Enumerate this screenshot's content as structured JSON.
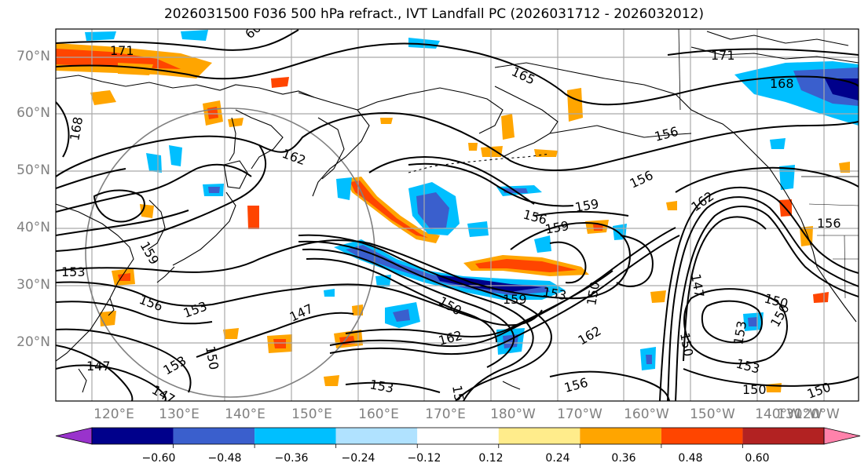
{
  "title": "2026031500 F036 500 hPa refract., IVT Landfall PC (2026031712 - 2026032012)",
  "lat_labels": [
    "70°N",
    "60°N",
    "50°N",
    "40°N",
    "30°N",
    "20°N"
  ],
  "lon_labels": [
    "120°E",
    "130°E",
    "140°E",
    "150°E",
    "160°E",
    "170°E",
    "180°W",
    "170°W",
    "160°W",
    "150°W",
    "140°W",
    "130°W",
    "120°W"
  ],
  "contour_labels": [
    "171",
    "165",
    "171",
    "168",
    "168",
    "162",
    "156",
    "156",
    "159",
    "156",
    "159",
    "162",
    "156",
    "153",
    "159",
    "156",
    "153",
    "147",
    "150",
    "159",
    "153",
    "150",
    "150",
    "147",
    "150",
    "162",
    "162",
    "153",
    "153",
    "150",
    "150",
    "147",
    "153",
    "150",
    "153",
    "147",
    "156",
    "150",
    "15",
    "60"
  ],
  "colorbar": {
    "colors": [
      "#9933cc",
      "#00008b",
      "#3a5fcd",
      "#00bfff",
      "#b0e2ff",
      "#ffffff",
      "#ffec8b",
      "#ffa500",
      "#ff4500",
      "#b22222",
      "#ff82ab"
    ],
    "tick_labels": [
      "−0.60",
      "−0.48",
      "−0.36",
      "−0.24",
      "−0.12",
      "0.12",
      "0.24",
      "0.36",
      "0.48",
      "0.60"
    ]
  },
  "legend_colors": {
    "contour": "#000000",
    "grid": "#a9a9a9",
    "circle": "#808080",
    "coast": "#000000"
  }
}
